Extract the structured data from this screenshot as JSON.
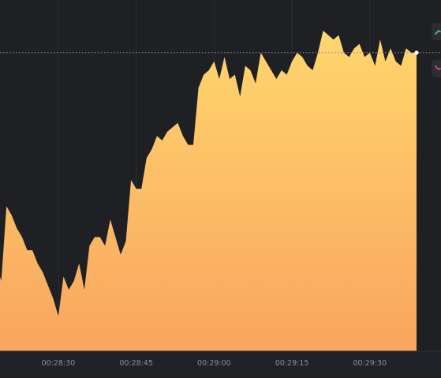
{
  "chart_data": {
    "type": "area",
    "title": "",
    "xlabel": "",
    "ylabel": "",
    "x_ticks": [
      "00:28:30",
      "00:28:45",
      "00:29:00",
      "00:29:15",
      "00:29:30"
    ],
    "x": [
      "00:28:18",
      "00:28:19",
      "00:28:20",
      "00:28:21",
      "00:28:22",
      "00:28:23",
      "00:28:24",
      "00:28:25",
      "00:28:26",
      "00:28:27",
      "00:28:28",
      "00:28:29",
      "00:28:30",
      "00:28:31",
      "00:28:32",
      "00:28:33",
      "00:28:34",
      "00:28:35",
      "00:28:36",
      "00:28:37",
      "00:28:38",
      "00:28:39",
      "00:28:40",
      "00:28:41",
      "00:28:42",
      "00:28:43",
      "00:28:44",
      "00:28:45",
      "00:28:46",
      "00:28:47",
      "00:28:48",
      "00:28:49",
      "00:28:50",
      "00:28:51",
      "00:28:52",
      "00:28:53",
      "00:28:54",
      "00:28:55",
      "00:28:56",
      "00:28:57",
      "00:28:58",
      "00:28:59",
      "00:29:00",
      "00:29:01",
      "00:29:02",
      "00:29:03",
      "00:29:04",
      "00:29:05",
      "00:29:06",
      "00:29:07",
      "00:29:08",
      "00:29:09",
      "00:29:10",
      "00:29:11",
      "00:29:12",
      "00:29:13",
      "00:29:14",
      "00:29:15",
      "00:29:16",
      "00:29:17",
      "00:29:18",
      "00:29:19",
      "00:29:20",
      "00:29:21",
      "00:29:22",
      "00:29:23",
      "00:29:24",
      "00:29:25",
      "00:29:26",
      "00:29:27",
      "00:29:28",
      "00:29:29",
      "00:29:30",
      "00:29:31",
      "00:29:32",
      "00:29:33",
      "00:29:34",
      "00:29:35",
      "00:29:36",
      "00:29:37",
      "00:29:38",
      "00:29:39"
    ],
    "values": [
      180,
      176,
      193,
      191,
      188,
      186,
      183,
      183,
      180,
      178,
      175,
      172,
      168,
      177,
      174,
      176,
      180,
      174,
      184,
      186,
      186,
      184,
      190,
      186,
      182,
      185,
      199,
      197,
      197,
      204,
      206,
      209,
      208,
      210,
      211,
      212,
      209,
      207,
      207,
      220,
      223,
      224,
      226,
      222,
      227,
      222,
      223,
      218,
      225,
      224,
      221,
      228,
      226,
      224,
      222,
      224,
      223,
      226,
      228,
      227,
      225,
      224,
      228,
      233,
      232,
      231,
      232,
      228,
      227,
      229,
      230,
      227,
      228,
      225,
      231,
      226,
      229,
      226,
      225,
      229,
      228,
      228
    ],
    "ylim": [
      160,
      240
    ],
    "last_value": 228,
    "grid": "vertical",
    "colors": {
      "fill_top": "#ffd66e",
      "fill_bottom": "#f9a55e",
      "background": "#1f2024",
      "grid": "#2c2d32",
      "line": "#3a3b40",
      "up": "#3fc47f",
      "down": "#e5475d"
    }
  },
  "controls": {
    "up_icon": "trend-up-icon",
    "down_icon": "trend-down-icon"
  }
}
